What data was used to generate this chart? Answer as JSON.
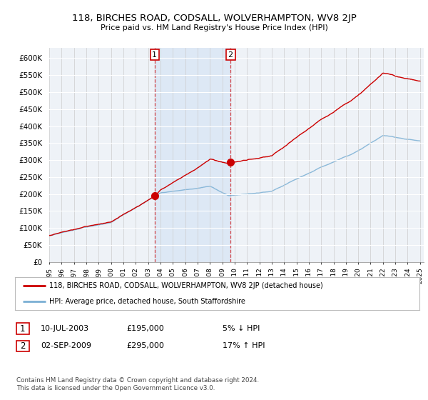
{
  "title": "118, BIRCHES ROAD, CODSALL, WOLVERHAMPTON, WV8 2JP",
  "subtitle": "Price paid vs. HM Land Registry's House Price Index (HPI)",
  "ylabel_ticks": [
    "£0",
    "£50K",
    "£100K",
    "£150K",
    "£200K",
    "£250K",
    "£300K",
    "£350K",
    "£400K",
    "£450K",
    "£500K",
    "£550K",
    "£600K"
  ],
  "ylim": [
    0,
    620000
  ],
  "yticks": [
    0,
    50000,
    100000,
    150000,
    200000,
    250000,
    300000,
    350000,
    400000,
    450000,
    500000,
    550000,
    600000
  ],
  "xstart_year": 1995,
  "xend_year": 2025,
  "hpi_color": "#7aafd4",
  "price_color": "#cc0000",
  "sale1_date": 2003.53,
  "sale1_price": 195000,
  "sale2_date": 2009.67,
  "sale2_price": 295000,
  "legend_label1": "118, BIRCHES ROAD, CODSALL, WOLVERHAMPTON, WV8 2JP (detached house)",
  "legend_label2": "HPI: Average price, detached house, South Staffordshire",
  "table_row1_num": "1",
  "table_row1_date": "10-JUL-2003",
  "table_row1_price": "£195,000",
  "table_row1_hpi": "5% ↓ HPI",
  "table_row2_num": "2",
  "table_row2_date": "02-SEP-2009",
  "table_row2_price": "£295,000",
  "table_row2_hpi": "17% ↑ HPI",
  "footer": "Contains HM Land Registry data © Crown copyright and database right 2024.\nThis data is licensed under the Open Government Licence v3.0.",
  "background_color": "#ffffff",
  "plot_bg_color": "#eef2f7",
  "shade_color": "#dde8f5"
}
